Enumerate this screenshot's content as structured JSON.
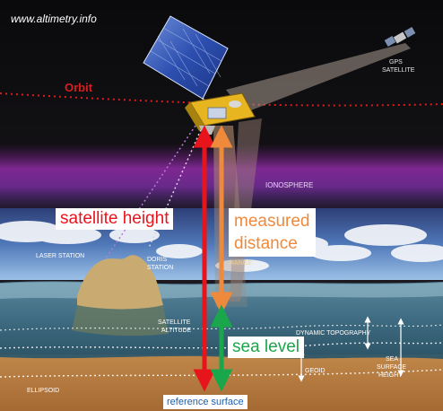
{
  "watermark": "www.altimetry.info",
  "orbit_label": "Orbit",
  "gps_label_line1": "GPS",
  "gps_label_line2": "SATELLITE",
  "ionosphere_label": "IONOSPHERE",
  "laser_station_label": "LASER STATION",
  "doris_label_line1": "DORIS",
  "doris_label_line2": "STATION",
  "range_label": "RANGE",
  "satellite_altitude_line1": "SATELLITE",
  "satellite_altitude_line2": "ALTITUDE",
  "dynamic_topography_label": "DYNAMIC TOPOGRAPHY",
  "sea_surface_height_line1": "SEA",
  "sea_surface_height_line2": "SURFACE",
  "sea_surface_height_line3": "HEIGHT",
  "geoid_label": "GEOID",
  "ellipsoid_label": "ELLIPSOID",
  "satellite_height_label": "satellite height",
  "measured_distance_line1": "measured",
  "measured_distance_line2": "distance",
  "sea_level_label": "sea level",
  "reference_surface_label": "reference surface",
  "colors": {
    "satellite_height": "#e8141c",
    "measured_distance": "#ef8a3c",
    "sea_level": "#1aa64a",
    "reference_surface": "#1f5fae",
    "orbit": "#d81e1e"
  }
}
